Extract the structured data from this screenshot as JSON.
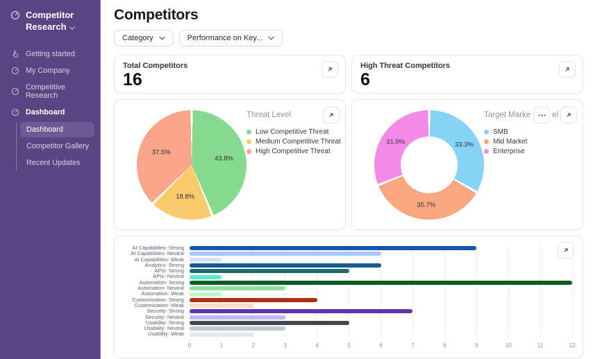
{
  "sidebar": {
    "title": "Competitor Research",
    "items": [
      {
        "label": "Getting started",
        "icon": "hand-pointer-icon"
      },
      {
        "label": "My Company",
        "icon": "gauge-icon"
      },
      {
        "label": "Competitive Research",
        "icon": "gauge-icon"
      },
      {
        "label": "Dashboard",
        "icon": "gauge-icon",
        "active_section": true
      }
    ],
    "sub_items": [
      {
        "label": "Dashboard",
        "active": true
      },
      {
        "label": "Competitor Gallery",
        "active": false
      },
      {
        "label": "Recent Updates",
        "active": false
      }
    ],
    "colors": {
      "background": "#5a4481",
      "active_item": "#6e5b95"
    }
  },
  "page": {
    "title": "Competitors"
  },
  "filters": [
    {
      "label": "Category"
    },
    {
      "label": "Performance on Key..."
    }
  ],
  "stat_cards": [
    {
      "title": "Total Competitors",
      "value": "16"
    },
    {
      "title": "High Threat Competitors",
      "value": "6"
    }
  ],
  "icons": {
    "expand": "arrow-up-right",
    "more": "ellipsis",
    "chevron": "chevron-down"
  },
  "chart_data": [
    {
      "type": "pie",
      "title": "Threat Level",
      "legend_position": "right",
      "labels": [
        "Low Competitive Threat",
        "Medium Competitive Threat",
        "High Competitive Threat"
      ],
      "values": [
        43.8,
        18.8,
        37.5
      ],
      "display_values": [
        "43.8%",
        "18.8%",
        "37.5%"
      ],
      "colors": [
        "#85da8d",
        "#f8ca6b",
        "#f9a58a"
      ]
    },
    {
      "type": "donut",
      "title": "Target Market Mu",
      "title_truncated_end": "el",
      "legend_position": "right",
      "labels": [
        "SMB",
        "Mid Market",
        "Enterprise"
      ],
      "values": [
        33.3,
        35.7,
        31.0
      ],
      "display_values": [
        "33.3%",
        "35.7%",
        "31.0%"
      ],
      "colors": [
        "#85d4f5",
        "#f9a87d",
        "#f48ae8"
      ]
    },
    {
      "type": "bar",
      "orientation": "horizontal",
      "xlim": [
        0,
        12
      ],
      "x_ticks": [
        0,
        1,
        2,
        3,
        4,
        5,
        6,
        7,
        8,
        9,
        10,
        11,
        12
      ],
      "grid": true,
      "categories": [
        "AI Capabilities- Strong",
        "AI Capabilities- Neutral",
        "AI Capabilities- Weak",
        "Analytics- Strong",
        "APIs- Strong",
        "APIs- Neutral",
        "Automation- Strong",
        "Automation- Neutral",
        "Automation- Weak",
        "Customization- Strong",
        "Customization- Weak",
        "Security- Strong",
        "Security- Neutral",
        "Usability- Strong",
        "Usability- Neutral",
        "Usability- Weak"
      ],
      "values": [
        9,
        6,
        1,
        6,
        5,
        1,
        12,
        3,
        1,
        4,
        2,
        7,
        3,
        5,
        3,
        2
      ],
      "colors": [
        "#1456a9",
        "#a7c6fb",
        "#d4e2fc",
        "#135a92",
        "#1d6b70",
        "#5ce8d5",
        "#0b5c23",
        "#90e29c",
        "#c9f2cf",
        "#b22d14",
        "#fcdcc8",
        "#5d35ae",
        "#c0b6f8",
        "#42464f",
        "#c2c6cd",
        "#e5e9ee"
      ]
    }
  ]
}
